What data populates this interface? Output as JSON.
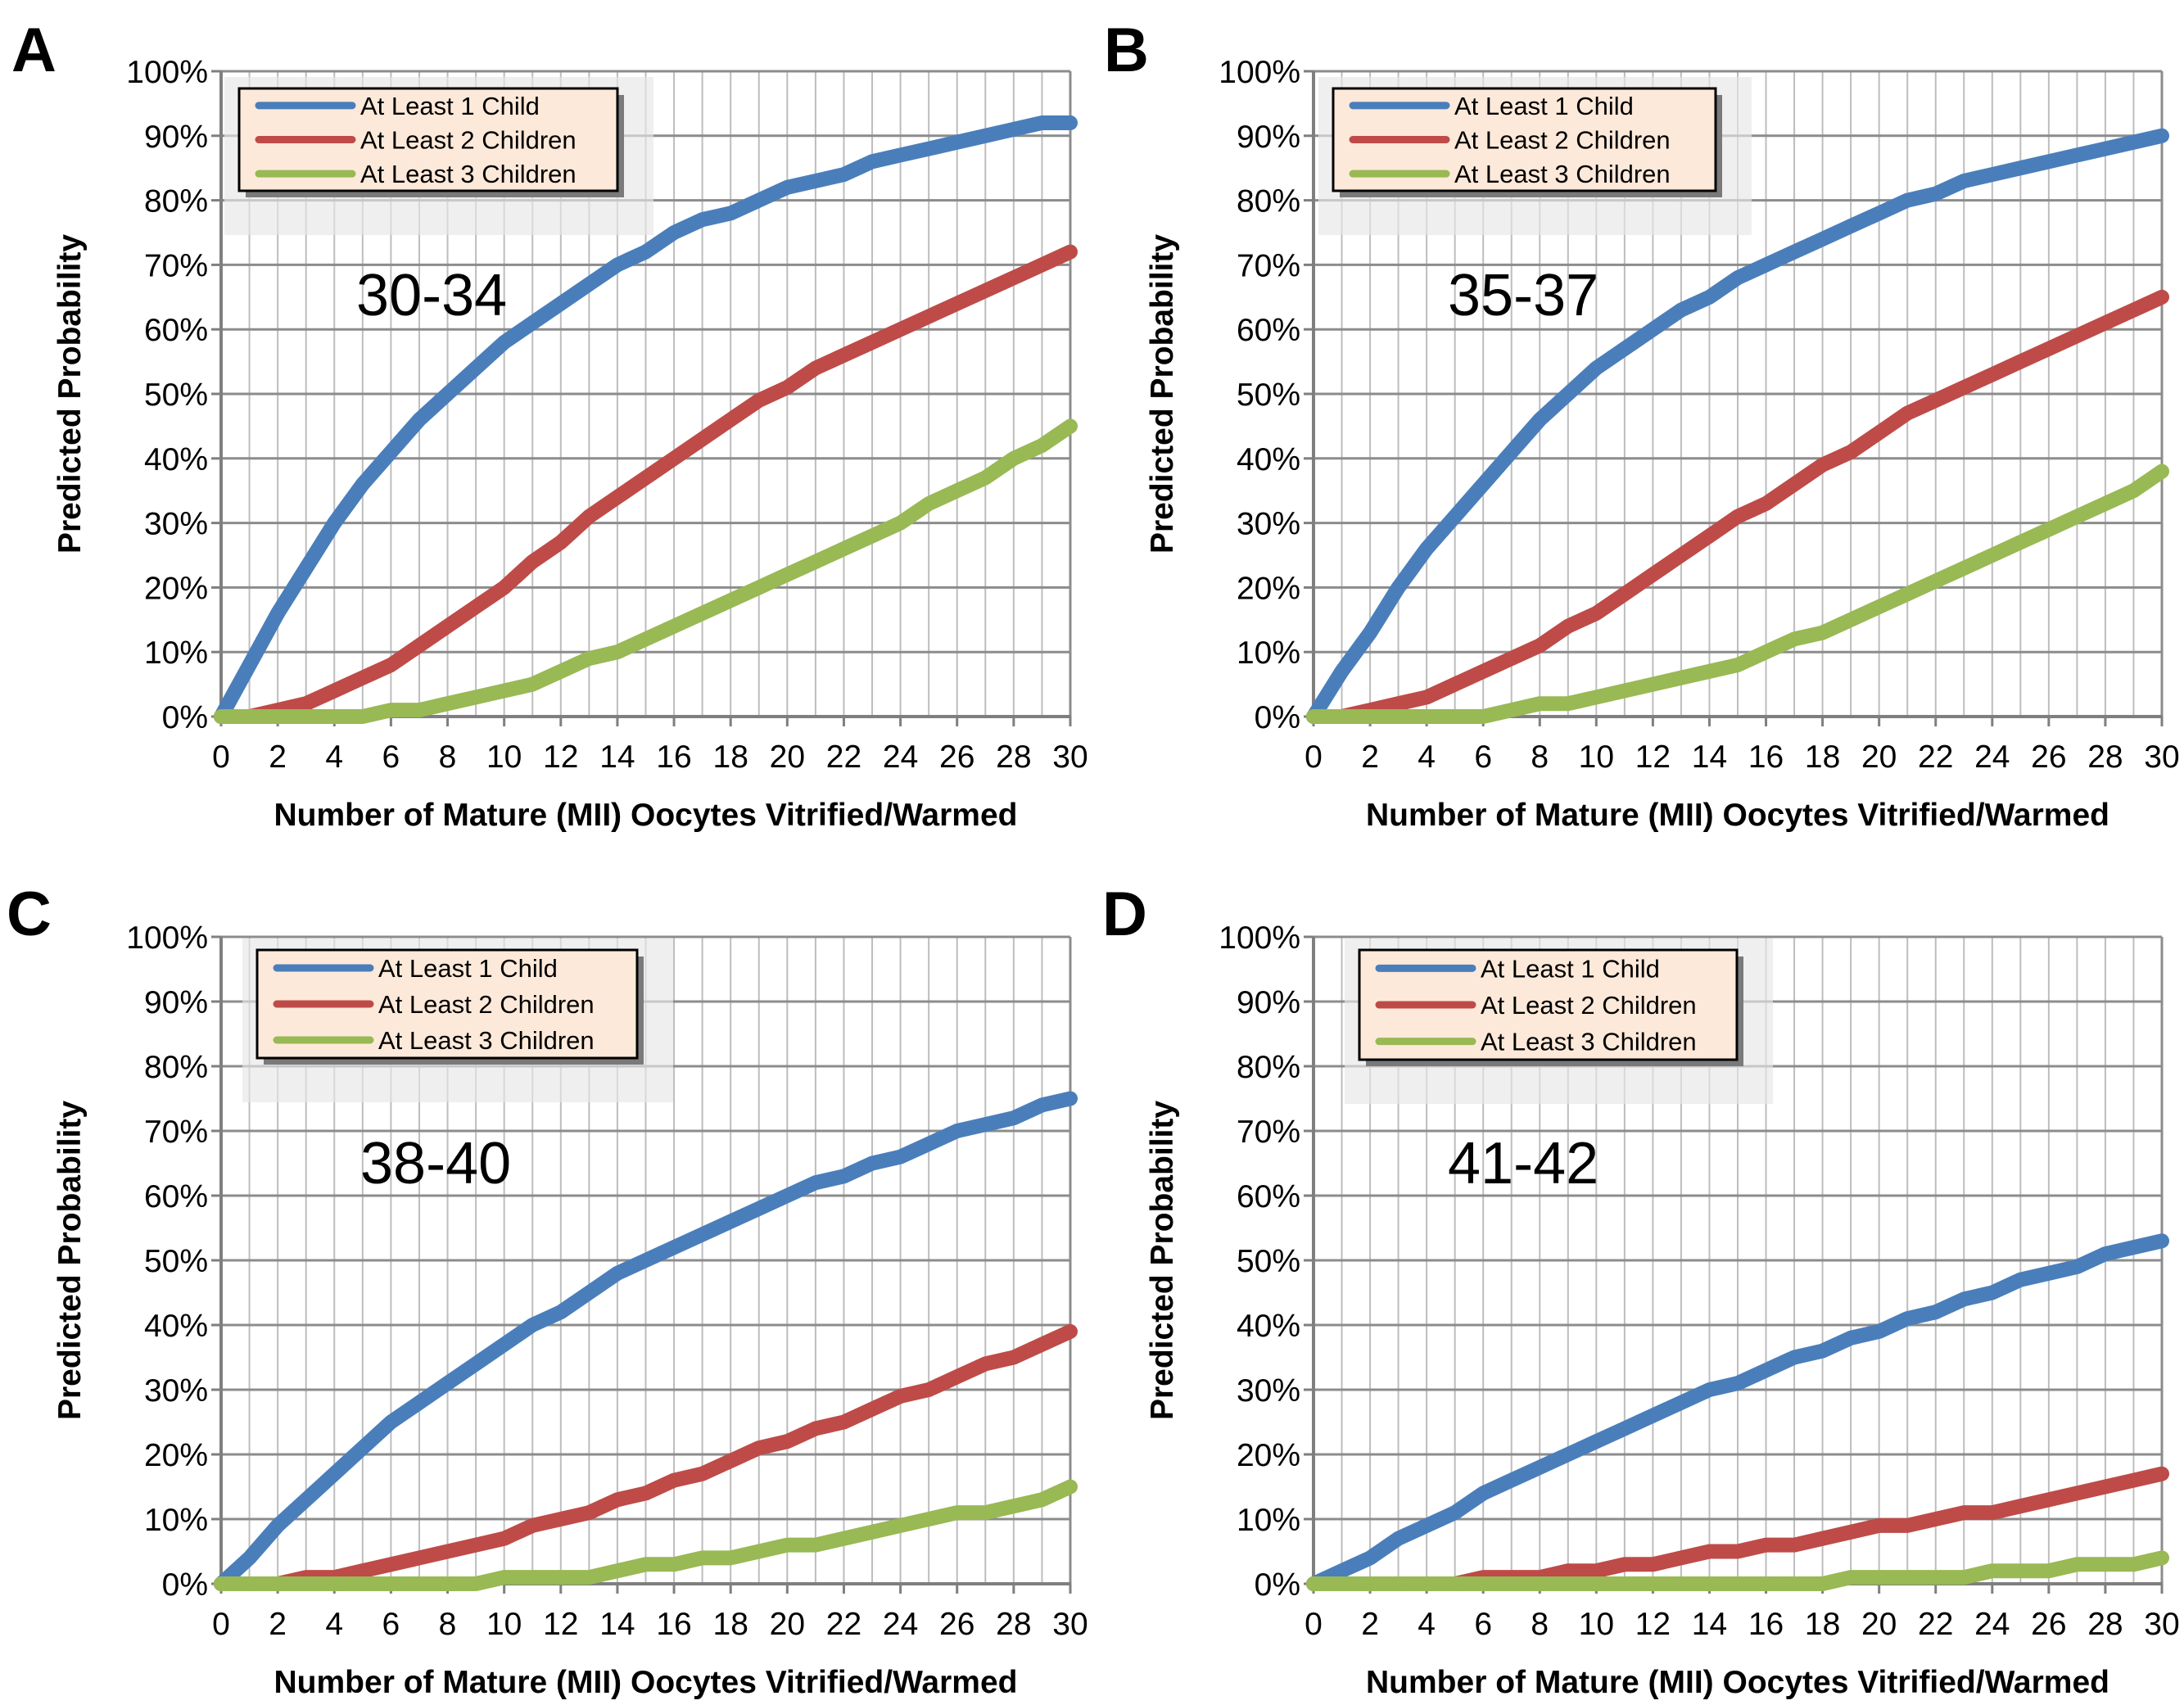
{
  "chart_data": [
    {
      "type": "line",
      "panel_letter": "A",
      "age_label": "30-34",
      "xlabel": "Number of Mature (MII) Oocytes Vitrified/Warmed",
      "ylabel": "Predicted Probability",
      "xlim": [
        0,
        30
      ],
      "ylim": [
        0,
        100
      ],
      "x_ticks": [
        "0",
        "2",
        "4",
        "6",
        "8",
        "10",
        "12",
        "14",
        "16",
        "18",
        "20",
        "22",
        "24",
        "26",
        "28",
        "30"
      ],
      "y_ticks": [
        "0%",
        "10%",
        "20%",
        "30%",
        "40%",
        "50%",
        "60%",
        "70%",
        "80%",
        "90%",
        "100%"
      ],
      "legend_position": "top-left",
      "x": [
        0,
        1,
        2,
        3,
        4,
        5,
        6,
        7,
        8,
        9,
        10,
        11,
        12,
        13,
        14,
        15,
        16,
        17,
        18,
        19,
        20,
        21,
        22,
        23,
        24,
        25,
        26,
        27,
        28,
        29,
        30
      ],
      "series": [
        {
          "name": "At Least 1 Child",
          "color": "#4a7ebb",
          "values": [
            0,
            8,
            16,
            23,
            30,
            36,
            41,
            46,
            50,
            54,
            58,
            61,
            64,
            67,
            70,
            72,
            75,
            77,
            78,
            80,
            82,
            83,
            84,
            86,
            87,
            88,
            89,
            90,
            91,
            92,
            92
          ]
        },
        {
          "name": "At Least 2 Children",
          "color": "#be4b48",
          "values": [
            0,
            0,
            1,
            2,
            4,
            6,
            8,
            11,
            14,
            17,
            20,
            24,
            27,
            31,
            34,
            37,
            40,
            43,
            46,
            49,
            51,
            54,
            56,
            58,
            60,
            62,
            64,
            66,
            68,
            70,
            72
          ]
        },
        {
          "name": "At Least 3 Children",
          "color": "#98b954",
          "values": [
            0,
            0,
            0,
            0,
            0,
            0,
            1,
            1,
            2,
            3,
            4,
            5,
            7,
            9,
            10,
            12,
            14,
            16,
            18,
            20,
            22,
            24,
            26,
            28,
            30,
            33,
            35,
            37,
            40,
            42,
            45
          ]
        }
      ]
    },
    {
      "type": "line",
      "panel_letter": "B",
      "age_label": "35-37",
      "xlabel": "Number of Mature (MII) Oocytes Vitrified/Warmed",
      "ylabel": "Predicted Probability",
      "xlim": [
        0,
        30
      ],
      "ylim": [
        0,
        100
      ],
      "x_ticks": [
        "0",
        "2",
        "4",
        "6",
        "8",
        "10",
        "12",
        "14",
        "16",
        "18",
        "20",
        "22",
        "24",
        "26",
        "28",
        "30"
      ],
      "y_ticks": [
        "0%",
        "10%",
        "20%",
        "30%",
        "40%",
        "50%",
        "60%",
        "70%",
        "80%",
        "90%",
        "100%"
      ],
      "legend_position": "top-left",
      "x": [
        0,
        1,
        2,
        3,
        4,
        5,
        6,
        7,
        8,
        9,
        10,
        11,
        12,
        13,
        14,
        15,
        16,
        17,
        18,
        19,
        20,
        21,
        22,
        23,
        24,
        25,
        26,
        27,
        28,
        29,
        30
      ],
      "series": [
        {
          "name": "At Least 1 Child",
          "color": "#4a7ebb",
          "values": [
            0,
            7,
            13,
            20,
            26,
            31,
            36,
            41,
            46,
            50,
            54,
            57,
            60,
            63,
            65,
            68,
            70,
            72,
            74,
            76,
            78,
            80,
            81,
            83,
            84,
            85,
            86,
            87,
            88,
            89,
            90
          ]
        },
        {
          "name": "At Least 2 Children",
          "color": "#be4b48",
          "values": [
            0,
            0,
            1,
            2,
            3,
            5,
            7,
            9,
            11,
            14,
            16,
            19,
            22,
            25,
            28,
            31,
            33,
            36,
            39,
            41,
            44,
            47,
            49,
            51,
            53,
            55,
            57,
            59,
            61,
            63,
            65
          ]
        },
        {
          "name": "At Least 3 Children",
          "color": "#98b954",
          "values": [
            0,
            0,
            0,
            0,
            0,
            0,
            0,
            1,
            2,
            2,
            3,
            4,
            5,
            6,
            7,
            8,
            10,
            12,
            13,
            15,
            17,
            19,
            21,
            23,
            25,
            27,
            29,
            31,
            33,
            35,
            38
          ]
        }
      ]
    },
    {
      "type": "line",
      "panel_letter": "C",
      "age_label": "38-40",
      "xlabel": "Number of Mature (MII) Oocytes Vitrified/Warmed",
      "ylabel": "Predicted Probability",
      "xlim": [
        0,
        30
      ],
      "ylim": [
        0,
        100
      ],
      "x_ticks": [
        "0",
        "2",
        "4",
        "6",
        "8",
        "10",
        "12",
        "14",
        "16",
        "18",
        "20",
        "22",
        "24",
        "26",
        "28",
        "30"
      ],
      "y_ticks": [
        "0%",
        "10%",
        "20%",
        "30%",
        "40%",
        "50%",
        "60%",
        "70%",
        "80%",
        "90%",
        "100%"
      ],
      "legend_position": "top-left",
      "x": [
        0,
        1,
        2,
        3,
        4,
        5,
        6,
        7,
        8,
        9,
        10,
        11,
        12,
        13,
        14,
        15,
        16,
        17,
        18,
        19,
        20,
        21,
        22,
        23,
        24,
        25,
        26,
        27,
        28,
        29,
        30
      ],
      "series": [
        {
          "name": "At Least 1 Child",
          "color": "#4a7ebb",
          "values": [
            0,
            4,
            9,
            13,
            17,
            21,
            25,
            28,
            31,
            34,
            37,
            40,
            42,
            45,
            48,
            50,
            52,
            54,
            56,
            58,
            60,
            62,
            63,
            65,
            66,
            68,
            70,
            71,
            72,
            74,
            75
          ]
        },
        {
          "name": "At Least 2 Children",
          "color": "#be4b48",
          "values": [
            0,
            0,
            0,
            1,
            1,
            2,
            3,
            4,
            5,
            6,
            7,
            9,
            10,
            11,
            13,
            14,
            16,
            17,
            19,
            21,
            22,
            24,
            25,
            27,
            29,
            30,
            32,
            34,
            35,
            37,
            39
          ]
        },
        {
          "name": "At Least 3 Children",
          "color": "#98b954",
          "values": [
            0,
            0,
            0,
            0,
            0,
            0,
            0,
            0,
            0,
            0,
            1,
            1,
            1,
            1,
            2,
            3,
            3,
            4,
            4,
            5,
            6,
            6,
            7,
            8,
            9,
            10,
            11,
            11,
            12,
            13,
            15
          ]
        }
      ]
    },
    {
      "type": "line",
      "panel_letter": "D",
      "age_label": "41-42",
      "xlabel": "Number of Mature (MII) Oocytes Vitrified/Warmed",
      "ylabel": "Predicted Probability",
      "xlim": [
        0,
        30
      ],
      "ylim": [
        0,
        100
      ],
      "x_ticks": [
        "0",
        "2",
        "4",
        "6",
        "8",
        "10",
        "12",
        "14",
        "16",
        "18",
        "20",
        "22",
        "24",
        "26",
        "28",
        "30"
      ],
      "y_ticks": [
        "0%",
        "10%",
        "20%",
        "30%",
        "40%",
        "50%",
        "60%",
        "70%",
        "80%",
        "90%",
        "100%"
      ],
      "legend_position": "top-left",
      "x": [
        0,
        1,
        2,
        3,
        4,
        5,
        6,
        7,
        8,
        9,
        10,
        11,
        12,
        13,
        14,
        15,
        16,
        17,
        18,
        19,
        20,
        21,
        22,
        23,
        24,
        25,
        26,
        27,
        28,
        29,
        30
      ],
      "series": [
        {
          "name": "At Least 1 Child",
          "color": "#4a7ebb",
          "values": [
            0,
            2,
            4,
            7,
            9,
            11,
            14,
            16,
            18,
            20,
            22,
            24,
            26,
            28,
            30,
            31,
            33,
            35,
            36,
            38,
            39,
            41,
            42,
            44,
            45,
            47,
            48,
            49,
            51,
            52,
            53
          ]
        },
        {
          "name": "At Least 2 Children",
          "color": "#be4b48",
          "values": [
            0,
            0,
            0,
            0,
            0,
            0,
            1,
            1,
            1,
            2,
            2,
            3,
            3,
            4,
            5,
            5,
            6,
            6,
            7,
            8,
            9,
            9,
            10,
            11,
            11,
            12,
            13,
            14,
            15,
            16,
            17
          ]
        },
        {
          "name": "At Least 3 Children",
          "color": "#98b954",
          "values": [
            0,
            0,
            0,
            0,
            0,
            0,
            0,
            0,
            0,
            0,
            0,
            0,
            0,
            0,
            0,
            0,
            0,
            0,
            0,
            1,
            1,
            1,
            1,
            1,
            2,
            2,
            2,
            3,
            3,
            3,
            4
          ]
        }
      ]
    }
  ]
}
